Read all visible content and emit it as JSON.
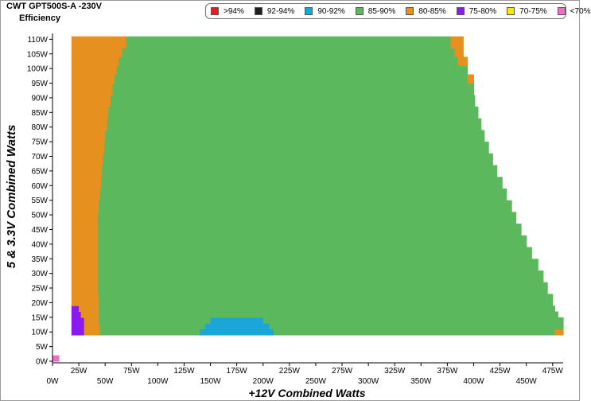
{
  "window": {
    "title": "CWT GPT500S-A -230V",
    "subtitle": "Efficiency"
  },
  "legend": [
    {
      "label": ">94%",
      "color": "#e02020"
    },
    {
      "label": "92-94%",
      "color": "#202020"
    },
    {
      "label": "90-92%",
      "color": "#1aa6d9"
    },
    {
      "label": "85-90%",
      "color": "#5cb85c"
    },
    {
      "label": "80-85%",
      "color": "#e6901f"
    },
    {
      "label": "75-80%",
      "color": "#8a1aee"
    },
    {
      "label": "70-75%",
      "color": "#f5e61a"
    },
    {
      "label": "<70%",
      "color": "#f26ec4"
    }
  ],
  "chart_data": {
    "type": "heatmap",
    "title": "CWT GPT500S-A -230V",
    "subtitle": "Efficiency",
    "xlabel": "+12V Combined Watts",
    "ylabel": "5 & 3.3V Combined Watts",
    "xlim": [
      0,
      485
    ],
    "ylim": [
      0,
      112
    ],
    "x_ticks": [
      "0W",
      "25W",
      "50W",
      "75W",
      "100W",
      "125W",
      "150W",
      "175W",
      "200W",
      "225W",
      "250W",
      "275W",
      "300W",
      "325W",
      "350W",
      "375W",
      "400W",
      "425W",
      "450W",
      "475W"
    ],
    "y_ticks": [
      "0W",
      "5W",
      "10W",
      "15W",
      "20W",
      "25W",
      "30W",
      "35W",
      "40W",
      "45W",
      "50W",
      "55W",
      "60W",
      "65W",
      "70W",
      "75W",
      "80W",
      "85W",
      "90W",
      "95W",
      "100W",
      "105W",
      "110W"
    ],
    "bands": [
      {
        "y_start": 0,
        "y_end": 2,
        "segments": [
          {
            "x_start": 0,
            "x_end": 6,
            "class": "<70%"
          }
        ]
      },
      {
        "y_start": 9,
        "y_end": 11,
        "segments": [
          {
            "x_start": 18,
            "x_end": 30,
            "class": "75-80%"
          },
          {
            "x_start": 30,
            "x_end": 45,
            "class": "80-85%"
          },
          {
            "x_start": 45,
            "x_end": 140,
            "class": "85-90%"
          },
          {
            "x_start": 140,
            "x_end": 210,
            "class": "90-92%"
          },
          {
            "x_start": 210,
            "x_end": 477,
            "class": "85-90%"
          },
          {
            "x_start": 477,
            "x_end": 485,
            "class": "80-85%"
          }
        ]
      },
      {
        "y_start": 11,
        "y_end": 13,
        "segments": [
          {
            "x_start": 18,
            "x_end": 30,
            "class": "75-80%"
          },
          {
            "x_start": 30,
            "x_end": 45,
            "class": "80-85%"
          },
          {
            "x_start": 45,
            "x_end": 145,
            "class": "85-90%"
          },
          {
            "x_start": 145,
            "x_end": 206,
            "class": "90-92%"
          },
          {
            "x_start": 206,
            "x_end": 485,
            "class": "85-90%"
          }
        ]
      },
      {
        "y_start": 13,
        "y_end": 15,
        "segments": [
          {
            "x_start": 18,
            "x_end": 30,
            "class": "75-80%"
          },
          {
            "x_start": 30,
            "x_end": 44,
            "class": "80-85%"
          },
          {
            "x_start": 44,
            "x_end": 150,
            "class": "85-90%"
          },
          {
            "x_start": 150,
            "x_end": 200,
            "class": "90-92%"
          },
          {
            "x_start": 200,
            "x_end": 485,
            "class": "85-90%"
          }
        ]
      },
      {
        "y_start": 15,
        "y_end": 17,
        "segments": [
          {
            "x_start": 18,
            "x_end": 27,
            "class": "75-80%"
          },
          {
            "x_start": 27,
            "x_end": 44,
            "class": "80-85%"
          },
          {
            "x_start": 44,
            "x_end": 480,
            "class": "85-90%"
          }
        ]
      },
      {
        "y_start": 17,
        "y_end": 19,
        "segments": [
          {
            "x_start": 18,
            "x_end": 25,
            "class": "75-80%"
          },
          {
            "x_start": 25,
            "x_end": 44,
            "class": "80-85%"
          },
          {
            "x_start": 44,
            "x_end": 477,
            "class": "85-90%"
          }
        ]
      },
      {
        "y_start": 19,
        "y_end": 23,
        "segments": [
          {
            "x_start": 18,
            "x_end": 44,
            "class": "80-85%"
          },
          {
            "x_start": 44,
            "x_end": 475,
            "class": "85-90%"
          }
        ]
      },
      {
        "y_start": 23,
        "y_end": 27,
        "segments": [
          {
            "x_start": 18,
            "x_end": 43,
            "class": "80-85%"
          },
          {
            "x_start": 43,
            "x_end": 470,
            "class": "85-90%"
          }
        ]
      },
      {
        "y_start": 27,
        "y_end": 31,
        "segments": [
          {
            "x_start": 18,
            "x_end": 43,
            "class": "80-85%"
          },
          {
            "x_start": 43,
            "x_end": 466,
            "class": "85-90%"
          }
        ]
      },
      {
        "y_start": 31,
        "y_end": 35,
        "segments": [
          {
            "x_start": 18,
            "x_end": 43,
            "class": "80-85%"
          },
          {
            "x_start": 43,
            "x_end": 461,
            "class": "85-90%"
          }
        ]
      },
      {
        "y_start": 35,
        "y_end": 39,
        "segments": [
          {
            "x_start": 18,
            "x_end": 43,
            "class": "80-85%"
          },
          {
            "x_start": 43,
            "x_end": 455,
            "class": "85-90%"
          }
        ]
      },
      {
        "y_start": 39,
        "y_end": 43,
        "segments": [
          {
            "x_start": 18,
            "x_end": 43,
            "class": "80-85%"
          },
          {
            "x_start": 43,
            "x_end": 450,
            "class": "85-90%"
          }
        ]
      },
      {
        "y_start": 43,
        "y_end": 47,
        "segments": [
          {
            "x_start": 18,
            "x_end": 43,
            "class": "80-85%"
          },
          {
            "x_start": 43,
            "x_end": 445,
            "class": "85-90%"
          }
        ]
      },
      {
        "y_start": 47,
        "y_end": 51,
        "segments": [
          {
            "x_start": 18,
            "x_end": 43,
            "class": "80-85%"
          },
          {
            "x_start": 43,
            "x_end": 440,
            "class": "85-90%"
          }
        ]
      },
      {
        "y_start": 51,
        "y_end": 55,
        "segments": [
          {
            "x_start": 18,
            "x_end": 44,
            "class": "80-85%"
          },
          {
            "x_start": 44,
            "x_end": 436,
            "class": "85-90%"
          }
        ]
      },
      {
        "y_start": 55,
        "y_end": 59,
        "segments": [
          {
            "x_start": 18,
            "x_end": 45,
            "class": "80-85%"
          },
          {
            "x_start": 45,
            "x_end": 431,
            "class": "85-90%"
          }
        ]
      },
      {
        "y_start": 59,
        "y_end": 63,
        "segments": [
          {
            "x_start": 18,
            "x_end": 46,
            "class": "80-85%"
          },
          {
            "x_start": 46,
            "x_end": 427,
            "class": "85-90%"
          }
        ]
      },
      {
        "y_start": 63,
        "y_end": 67,
        "segments": [
          {
            "x_start": 18,
            "x_end": 47,
            "class": "80-85%"
          },
          {
            "x_start": 47,
            "x_end": 422,
            "class": "85-90%"
          }
        ]
      },
      {
        "y_start": 67,
        "y_end": 71,
        "segments": [
          {
            "x_start": 18,
            "x_end": 48,
            "class": "80-85%"
          },
          {
            "x_start": 48,
            "x_end": 418,
            "class": "85-90%"
          }
        ]
      },
      {
        "y_start": 71,
        "y_end": 75,
        "segments": [
          {
            "x_start": 18,
            "x_end": 49,
            "class": "80-85%"
          },
          {
            "x_start": 49,
            "x_end": 414,
            "class": "85-90%"
          }
        ]
      },
      {
        "y_start": 75,
        "y_end": 79,
        "segments": [
          {
            "x_start": 18,
            "x_end": 50,
            "class": "80-85%"
          },
          {
            "x_start": 50,
            "x_end": 410,
            "class": "85-90%"
          }
        ]
      },
      {
        "y_start": 79,
        "y_end": 83,
        "segments": [
          {
            "x_start": 18,
            "x_end": 52,
            "class": "80-85%"
          },
          {
            "x_start": 52,
            "x_end": 407,
            "class": "85-90%"
          }
        ]
      },
      {
        "y_start": 83,
        "y_end": 87,
        "segments": [
          {
            "x_start": 18,
            "x_end": 53,
            "class": "80-85%"
          },
          {
            "x_start": 53,
            "x_end": 404,
            "class": "85-90%"
          }
        ]
      },
      {
        "y_start": 87,
        "y_end": 91,
        "segments": [
          {
            "x_start": 18,
            "x_end": 55,
            "class": "80-85%"
          },
          {
            "x_start": 55,
            "x_end": 401,
            "class": "85-90%"
          }
        ]
      },
      {
        "y_start": 91,
        "y_end": 95,
        "segments": [
          {
            "x_start": 18,
            "x_end": 57,
            "class": "80-85%"
          },
          {
            "x_start": 57,
            "x_end": 400,
            "class": "85-90%"
          }
        ]
      },
      {
        "y_start": 95,
        "y_end": 98,
        "segments": [
          {
            "x_start": 18,
            "x_end": 59,
            "class": "80-85%"
          },
          {
            "x_start": 59,
            "x_end": 394,
            "class": "85-90%"
          },
          {
            "x_start": 394,
            "x_end": 400,
            "class": "80-85%"
          }
        ]
      },
      {
        "y_start": 98,
        "y_end": 101,
        "segments": [
          {
            "x_start": 18,
            "x_end": 61,
            "class": "80-85%"
          },
          {
            "x_start": 61,
            "x_end": 394,
            "class": "85-90%"
          }
        ]
      },
      {
        "y_start": 101,
        "y_end": 104,
        "segments": [
          {
            "x_start": 18,
            "x_end": 63,
            "class": "80-85%"
          },
          {
            "x_start": 63,
            "x_end": 385,
            "class": "85-90%"
          },
          {
            "x_start": 385,
            "x_end": 394,
            "class": "80-85%"
          }
        ]
      },
      {
        "y_start": 104,
        "y_end": 107,
        "segments": [
          {
            "x_start": 18,
            "x_end": 66,
            "class": "80-85%"
          },
          {
            "x_start": 66,
            "x_end": 382,
            "class": "85-90%"
          },
          {
            "x_start": 382,
            "x_end": 390,
            "class": "80-85%"
          }
        ]
      },
      {
        "y_start": 107,
        "y_end": 111,
        "segments": [
          {
            "x_start": 18,
            "x_end": 70,
            "class": "80-85%"
          },
          {
            "x_start": 70,
            "x_end": 378,
            "class": "85-90%"
          },
          {
            "x_start": 378,
            "x_end": 390,
            "class": "80-85%"
          }
        ]
      }
    ]
  }
}
